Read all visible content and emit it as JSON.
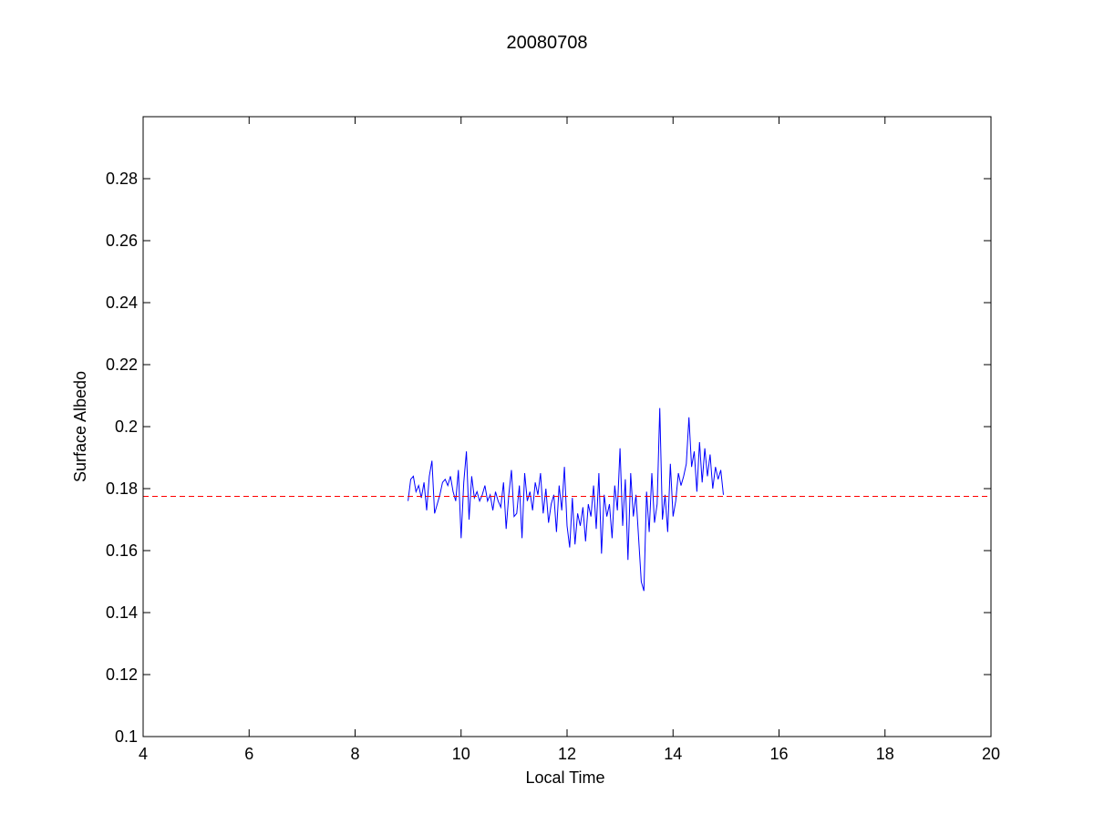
{
  "chart_data": {
    "type": "line",
    "title": "20080708",
    "xlabel": "Local Time",
    "ylabel": "Surface Albedo",
    "xlim": [
      4,
      20
    ],
    "ylim": [
      0.1,
      0.3
    ],
    "x_ticks": [
      4,
      6,
      8,
      10,
      12,
      14,
      16,
      18,
      20
    ],
    "x_tick_labels": [
      "4",
      "6",
      "8",
      "10",
      "12",
      "14",
      "16",
      "18",
      "20"
    ],
    "y_ticks": [
      0.1,
      0.12,
      0.14,
      0.16,
      0.18,
      0.2,
      0.22,
      0.24,
      0.26,
      0.28
    ],
    "y_tick_labels": [
      "0.1",
      "0.12",
      "0.14",
      "0.16",
      "0.18",
      "0.2",
      "0.22",
      "0.24",
      "0.26",
      "0.28"
    ],
    "grid": false,
    "legend": "none",
    "series": [
      {
        "style": "solid",
        "color": "#0000ff",
        "x": [
          9.0,
          9.05,
          9.1,
          9.15,
          9.2,
          9.25,
          9.3,
          9.35,
          9.4,
          9.45,
          9.5,
          9.55,
          9.6,
          9.65,
          9.7,
          9.75,
          9.8,
          9.85,
          9.9,
          9.95,
          10.0,
          10.05,
          10.1,
          10.15,
          10.2,
          10.25,
          10.3,
          10.35,
          10.4,
          10.45,
          10.5,
          10.55,
          10.6,
          10.65,
          10.7,
          10.75,
          10.8,
          10.85,
          10.9,
          10.95,
          11.0,
          11.05,
          11.1,
          11.15,
          11.2,
          11.25,
          11.3,
          11.35,
          11.4,
          11.45,
          11.5,
          11.55,
          11.6,
          11.65,
          11.7,
          11.75,
          11.8,
          11.85,
          11.9,
          11.95,
          12.0,
          12.05,
          12.1,
          12.15,
          12.2,
          12.25,
          12.3,
          12.35,
          12.4,
          12.45,
          12.5,
          12.55,
          12.6,
          12.65,
          12.7,
          12.75,
          12.8,
          12.85,
          12.9,
          12.95,
          13.0,
          13.05,
          13.1,
          13.15,
          13.2,
          13.25,
          13.3,
          13.35,
          13.4,
          13.45,
          13.5,
          13.55,
          13.6,
          13.65,
          13.7,
          13.75,
          13.8,
          13.85,
          13.9,
          13.95,
          14.0,
          14.05,
          14.1,
          14.15,
          14.2,
          14.25,
          14.3,
          14.35,
          14.4,
          14.45,
          14.5,
          14.55,
          14.6,
          14.65,
          14.7,
          14.75,
          14.8,
          14.85,
          14.9,
          14.95
        ],
        "values": [
          0.176,
          0.183,
          0.184,
          0.179,
          0.181,
          0.177,
          0.182,
          0.173,
          0.184,
          0.189,
          0.172,
          0.175,
          0.178,
          0.182,
          0.183,
          0.181,
          0.184,
          0.179,
          0.176,
          0.186,
          0.164,
          0.182,
          0.192,
          0.17,
          0.184,
          0.177,
          0.179,
          0.176,
          0.178,
          0.181,
          0.176,
          0.178,
          0.173,
          0.179,
          0.176,
          0.174,
          0.182,
          0.167,
          0.178,
          0.186,
          0.171,
          0.172,
          0.181,
          0.164,
          0.185,
          0.176,
          0.179,
          0.173,
          0.182,
          0.178,
          0.185,
          0.172,
          0.18,
          0.169,
          0.175,
          0.178,
          0.166,
          0.181,
          0.173,
          0.187,
          0.168,
          0.161,
          0.177,
          0.162,
          0.172,
          0.168,
          0.174,
          0.163,
          0.175,
          0.171,
          0.181,
          0.167,
          0.185,
          0.159,
          0.178,
          0.171,
          0.175,
          0.164,
          0.181,
          0.173,
          0.193,
          0.168,
          0.183,
          0.157,
          0.185,
          0.171,
          0.178,
          0.164,
          0.15,
          0.147,
          0.179,
          0.166,
          0.185,
          0.169,
          0.175,
          0.206,
          0.17,
          0.178,
          0.166,
          0.188,
          0.171,
          0.176,
          0.185,
          0.181,
          0.184,
          0.188,
          0.203,
          0.187,
          0.192,
          0.179,
          0.195,
          0.182,
          0.193,
          0.184,
          0.191,
          0.18,
          0.187,
          0.183,
          0.186,
          0.178
        ]
      },
      {
        "style": "dashed",
        "color": "#ff0000",
        "x": [
          4,
          20
        ],
        "values": [
          0.1775,
          0.1775
        ]
      }
    ]
  }
}
